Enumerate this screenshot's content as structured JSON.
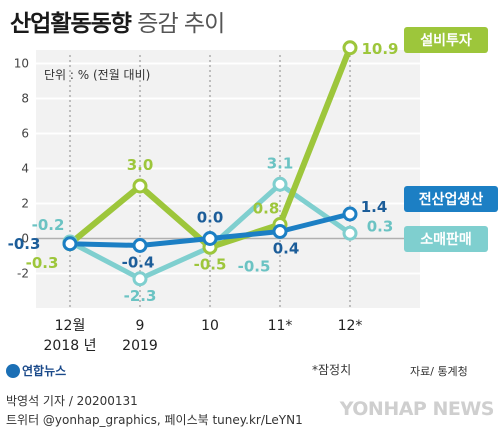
{
  "title_bold": "산업활동동향",
  "title_light": "증감 추이",
  "unit_label": "단위 : % (전월 대비)",
  "footnote": "*잠정치",
  "source": "자료/ 통계청",
  "credit_line1": "박영석 기자 / 20200131",
  "credit_line2": "트위터 @yonhap_graphics, 페이스북 tuney.kr/LeYN1",
  "logo_text": "연합뉴스",
  "watermark_text": "YONHAP NEWS",
  "chart_data": {
    "type": "line",
    "x_categories": [
      "12월\n2018 년",
      "9\n2019",
      "10",
      "11*",
      "12*"
    ],
    "ylim": [
      -3,
      10
    ],
    "y_ticks": [
      -2,
      0,
      2,
      4,
      6,
      8,
      10
    ],
    "grid": true,
    "series": [
      {
        "name": "설비투자",
        "color": "#9dc63b",
        "values": [
          -0.3,
          3.0,
          -0.5,
          0.8,
          10.9
        ],
        "labels": [
          "-0.3",
          "3.0",
          "-0.5",
          "0.8",
          "10.9"
        ]
      },
      {
        "name": "전산업생산",
        "color": "#1c7fc4",
        "values": [
          -0.3,
          -0.4,
          0.0,
          0.4,
          1.4
        ],
        "labels": [
          "-0.3",
          "-0.4",
          "0.0",
          "0.4",
          "1.4"
        ]
      },
      {
        "name": "소매판매",
        "color": "#7fcfcf",
        "values": [
          -0.2,
          -2.3,
          -0.5,
          3.1,
          0.3
        ],
        "labels": [
          "-0.2",
          "-2.3",
          "-0.5",
          "3.1",
          "0.3"
        ]
      }
    ]
  }
}
